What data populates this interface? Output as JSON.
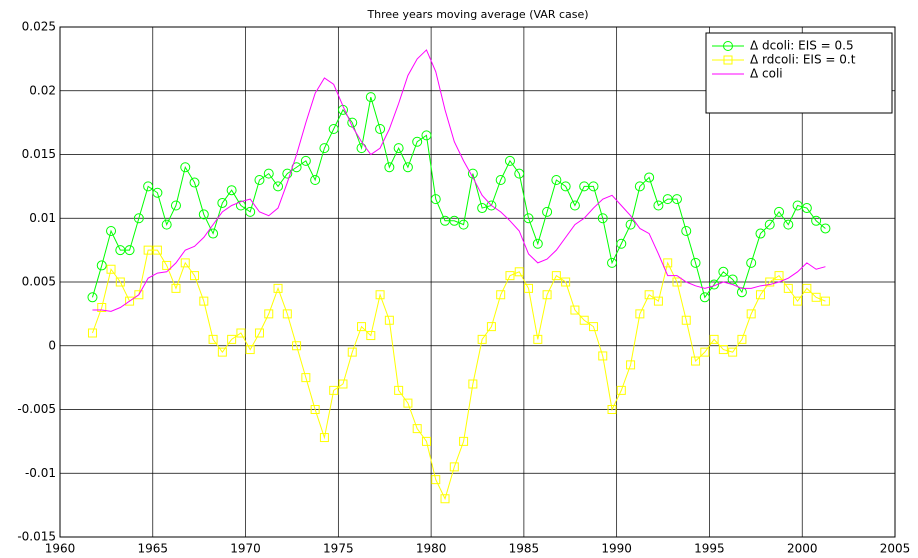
{
  "chart_data": {
    "type": "line",
    "title": "Three years moving average (VAR case)",
    "x": [
      1961.75,
      1962.25,
      1962.75,
      1963.25,
      1963.75,
      1964.25,
      1964.75,
      1965.25,
      1965.75,
      1966.25,
      1966.75,
      1967.25,
      1967.75,
      1968.25,
      1968.75,
      1969.25,
      1969.75,
      1970.25,
      1970.75,
      1971.25,
      1971.75,
      1972.25,
      1972.75,
      1973.25,
      1973.75,
      1974.25,
      1974.75,
      1975.25,
      1975.75,
      1976.25,
      1976.75,
      1977.25,
      1977.75,
      1978.25,
      1978.75,
      1979.25,
      1979.75,
      1980.25,
      1980.75,
      1981.25,
      1981.75,
      1982.25,
      1982.75,
      1983.25,
      1983.75,
      1984.25,
      1984.75,
      1985.25,
      1985.75,
      1986.25,
      1986.75,
      1987.25,
      1987.75,
      1988.25,
      1988.75,
      1989.25,
      1989.75,
      1990.25,
      1990.75,
      1991.25,
      1991.75,
      1992.25,
      1992.75,
      1993.25,
      1993.75,
      1994.25,
      1994.75,
      1995.25,
      1995.75,
      1996.25,
      1996.75,
      1997.25,
      1997.75,
      1998.25,
      1998.75,
      1999.25,
      1999.75,
      2000.25,
      2000.75,
      2001.25
    ],
    "series": [
      {
        "name": "Δ dcoli: EIS = 0.5",
        "color": "#00ff00",
        "marker": "circle",
        "values": [
          0.0038,
          0.0063,
          0.009,
          0.0075,
          0.0075,
          0.01,
          0.0125,
          0.012,
          0.0095,
          0.011,
          0.014,
          0.0128,
          0.0103,
          0.0088,
          0.0112,
          0.0122,
          0.011,
          0.0105,
          0.013,
          0.0135,
          0.0125,
          0.0135,
          0.014,
          0.0145,
          0.013,
          0.0155,
          0.017,
          0.0185,
          0.0175,
          0.0155,
          0.0195,
          0.017,
          0.014,
          0.0155,
          0.014,
          0.016,
          0.0165,
          0.0115,
          0.0098,
          0.0098,
          0.0095,
          0.0135,
          0.0108,
          0.011,
          0.013,
          0.0145,
          0.0135,
          0.01,
          0.008,
          0.0105,
          0.013,
          0.0125,
          0.011,
          0.0125,
          0.0125,
          0.01,
          0.0065,
          0.008,
          0.0095,
          0.0125,
          0.0132,
          0.011,
          0.0115,
          0.0115,
          0.009,
          0.0065,
          0.0038,
          0.0048,
          0.0058,
          0.0052,
          0.0042,
          0.0065,
          0.0088,
          0.0095,
          0.0105,
          0.0095,
          0.011,
          0.0108,
          0.0098,
          0.0092
        ]
      },
      {
        "name": "Δ rdcoli: EIS = 0.t",
        "color": "#ffff00",
        "marker": "square",
        "values": [
          0.001,
          0.003,
          0.006,
          0.005,
          0.0035,
          0.004,
          0.0075,
          0.0075,
          0.0063,
          0.0045,
          0.0065,
          0.0055,
          0.0035,
          0.0005,
          -0.0005,
          0.0005,
          0.001,
          -0.0003,
          0.001,
          0.0025,
          0.0045,
          0.0025,
          0.0,
          -0.0025,
          -0.005,
          -0.0072,
          -0.0035,
          -0.003,
          -0.0005,
          0.0015,
          0.0008,
          0.004,
          0.002,
          -0.0035,
          -0.0045,
          -0.0065,
          -0.0075,
          -0.0105,
          -0.012,
          -0.0095,
          -0.0075,
          -0.003,
          0.0005,
          0.0015,
          0.004,
          0.0055,
          0.0058,
          0.0045,
          0.0005,
          0.004,
          0.0055,
          0.005,
          0.0028,
          0.002,
          0.0015,
          -0.0008,
          -0.005,
          -0.0035,
          -0.0015,
          0.0025,
          0.004,
          0.0035,
          0.0065,
          0.005,
          0.002,
          -0.0012,
          -0.0005,
          0.0005,
          -0.0003,
          -0.0005,
          0.0005,
          0.0025,
          0.004,
          0.005,
          0.0055,
          0.0045,
          0.0035,
          0.0045,
          0.0038,
          0.0035
        ]
      },
      {
        "name": "Δ coli",
        "color": "#ff00ff",
        "marker": "none",
        "values": [
          0.0028,
          0.0028,
          0.0027,
          0.003,
          0.0035,
          0.004,
          0.0053,
          0.0057,
          0.0058,
          0.0065,
          0.0075,
          0.0078,
          0.0085,
          0.0095,
          0.0105,
          0.011,
          0.0113,
          0.0115,
          0.0105,
          0.0102,
          0.0108,
          0.0128,
          0.015,
          0.0175,
          0.0198,
          0.021,
          0.0205,
          0.0188,
          0.0172,
          0.016,
          0.015,
          0.0155,
          0.017,
          0.019,
          0.0212,
          0.0225,
          0.0232,
          0.0215,
          0.0185,
          0.016,
          0.0145,
          0.0132,
          0.0118,
          0.011,
          0.0105,
          0.0098,
          0.009,
          0.0072,
          0.0065,
          0.0068,
          0.0075,
          0.0085,
          0.0095,
          0.01,
          0.0108,
          0.0115,
          0.0118,
          0.011,
          0.0102,
          0.0092,
          0.0088,
          0.0072,
          0.0055,
          0.0055,
          0.005,
          0.0047,
          0.0045,
          0.0047,
          0.005,
          0.0048,
          0.0045,
          0.0045,
          0.0047,
          0.0048,
          0.005,
          0.0053,
          0.0058,
          0.0065,
          0.006,
          0.0062
        ]
      }
    ],
    "xlim": [
      1960,
      2005
    ],
    "xticks": [
      1960,
      1965,
      1970,
      1975,
      1980,
      1985,
      1990,
      1995,
      2000,
      2005
    ],
    "ylim": [
      -0.015,
      0.025
    ],
    "yticks": [
      -0.015,
      -0.01,
      -0.005,
      0,
      0.005,
      0.01,
      0.015,
      0.02,
      0.025
    ],
    "grid": true,
    "legend": "upper-right"
  }
}
